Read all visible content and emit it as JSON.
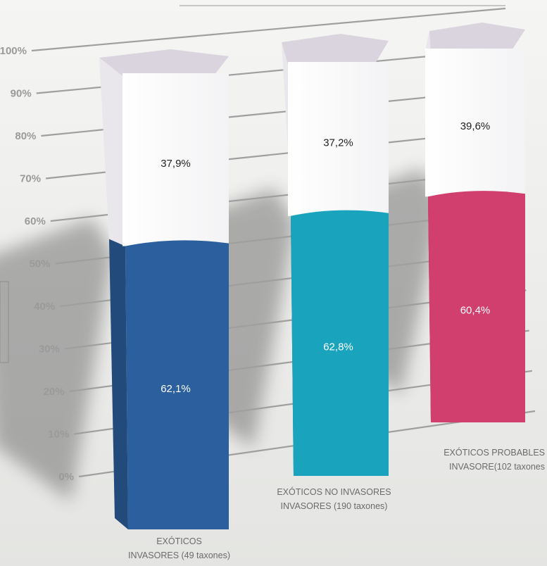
{
  "chart_data": {
    "type": "bar",
    "stacked": true,
    "categories": [
      [
        "EXÓTICOS",
        "INVASORES (49 taxones)"
      ],
      [
        "EXÓTICOS NO INVASORES",
        "INVASORES (190 taxones)"
      ],
      [
        "EXÓTICOS PROBABLES",
        "INVASORE(102 taxones"
      ]
    ],
    "series": [
      {
        "values": [
          62.1,
          62.8,
          60.4
        ],
        "labels": [
          "62,1%",
          "62,8%",
          "60,4%"
        ],
        "colors": [
          "#2c5f9e",
          "#1aa3bd",
          "#d03f6d"
        ]
      },
      {
        "values": [
          37.9,
          37.2,
          39.6
        ],
        "labels": [
          "37,9%",
          "37,2%",
          "39,6%"
        ],
        "color": "#ffffff"
      }
    ],
    "yticks": [
      "100%",
      "90%",
      "80%",
      "70%",
      "60%",
      "50%",
      "40%",
      "30%",
      "20%",
      "10%",
      "0%"
    ],
    "ylim": [
      0,
      100
    ],
    "grid": true,
    "legend": "none"
  }
}
